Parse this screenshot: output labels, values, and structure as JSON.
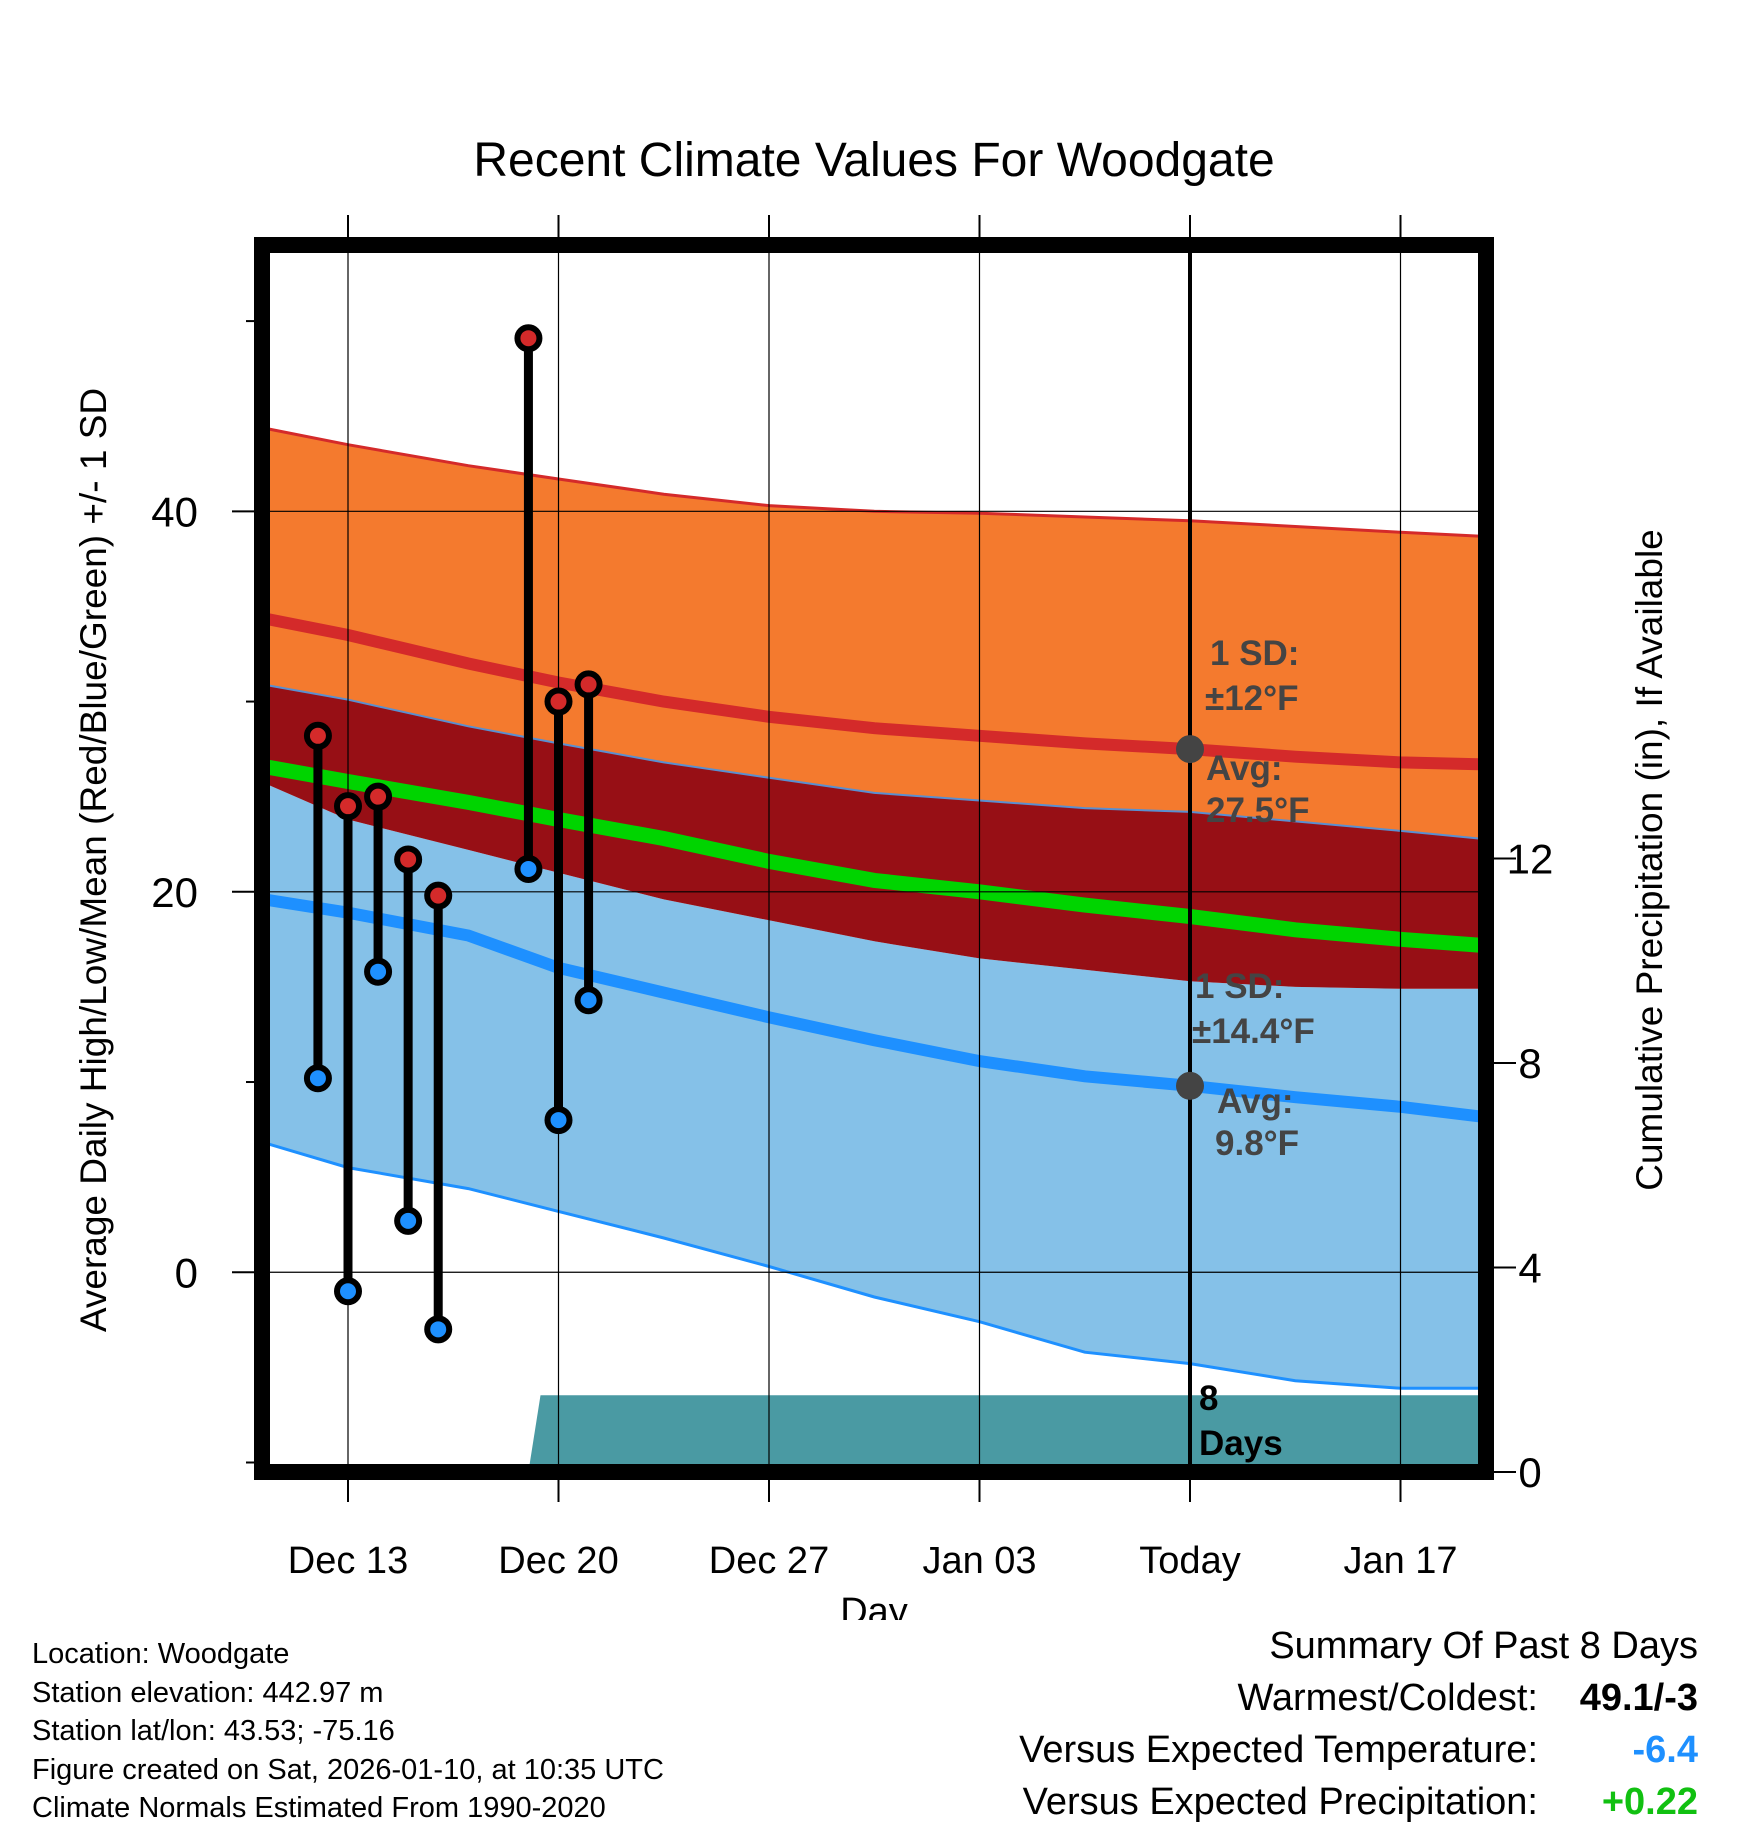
{
  "chart_data": {
    "type": "line",
    "title": "Recent Climate Values For Woodgate",
    "xlabel": "Day",
    "ylabel": "Average Daily High/Low/Mean (Red/Blue/Green) +/- 1 SD",
    "y2label": "Cumulative Precipitation (in), If Available",
    "x_day_range": [
      -21,
      10
    ],
    "ylim": [
      -10.5,
      54
    ],
    "y_ticks": [
      0,
      20,
      40
    ],
    "y_minor_ticks": [
      -10,
      10,
      30,
      50
    ],
    "y2lim": [
      0,
      24
    ],
    "y2_ticks": [
      0,
      4,
      8,
      12
    ],
    "x_ticks": [
      {
        "label": "Dec 13",
        "day": -28
      },
      {
        "label": "Dec 20",
        "day": -21
      },
      {
        "label": "Dec 27",
        "day": -14
      },
      {
        "label": "Jan 03",
        "day": -7
      },
      {
        "label": "Today",
        "day": 0
      },
      {
        "label": "Jan 17",
        "day": 7
      }
    ],
    "normal_days": [
      -31.2,
      -28,
      -24,
      -21,
      -17.5,
      -14,
      -10.5,
      -7,
      -3.5,
      0,
      3.5,
      7,
      9.6
    ],
    "normal_high": [
      34.5,
      33.5,
      32.0,
      31.0,
      30.0,
      29.2,
      28.6,
      28.2,
      27.8,
      27.5,
      27.1,
      26.8,
      26.7
    ],
    "normal_high_plus_sd": [
      44.5,
      43.5,
      42.4,
      41.7,
      40.9,
      40.3,
      40.0,
      39.9,
      39.7,
      39.5,
      39.2,
      38.9,
      38.7
    ],
    "normal_high_minus_sd": [
      31.0,
      30.1,
      28.7,
      27.8,
      26.8,
      26.0,
      25.2,
      24.8,
      24.4,
      24.2,
      23.7,
      23.2,
      22.8
    ],
    "normal_mean": [
      26.7,
      25.8,
      24.7,
      23.8,
      22.8,
      21.6,
      20.6,
      20.0,
      19.3,
      18.7,
      18.0,
      17.5,
      17.2
    ],
    "normal_mean_plus_sd": [
      26.0,
      23.8,
      22.2,
      21.0,
      19.6,
      18.5,
      17.4,
      16.5,
      15.9,
      15.3,
      15.0,
      14.9,
      14.9
    ],
    "normal_low": [
      19.7,
      18.9,
      17.7,
      16.0,
      14.7,
      13.4,
      12.2,
      11.1,
      10.3,
      9.8,
      9.2,
      8.7,
      8.2
    ],
    "normal_low_minus_sd": [
      7.0,
      5.5,
      4.4,
      3.2,
      1.8,
      0.3,
      -1.3,
      -2.6,
      -4.2,
      -4.8,
      -5.7,
      -6.1,
      -6.1
    ],
    "observed": [
      {
        "day": -29,
        "high": 28.2,
        "low": 10.2
      },
      {
        "day": -28,
        "high": 24.5,
        "low": -1.0
      },
      {
        "day": -27,
        "high": 25.0,
        "low": 15.8
      },
      {
        "day": -26,
        "high": 21.7,
        "low": 2.7
      },
      {
        "day": -25,
        "high": 19.8,
        "low": -3.0
      },
      {
        "day": -22,
        "high": 49.1,
        "low": 21.2
      },
      {
        "day": -21,
        "high": 30.0,
        "low": 8.0
      },
      {
        "day": -20,
        "high": 30.9,
        "low": 14.3
      }
    ],
    "precip_area": {
      "days": [
        -22,
        -21.6,
        9.6
      ],
      "cumulative_in": [
        0,
        1.5,
        1.5
      ]
    },
    "annotations": {
      "high_sd": "1 SD:",
      "high_sd_val": "±12°F",
      "high_avg": "Avg:",
      "high_avg_val": "27.5°F",
      "low_sd": "1 SD:",
      "low_sd_val": "±14.4°F",
      "low_avg": "Avg:",
      "low_avg_val": "9.8°F",
      "days_num": "8",
      "days_label": "Days"
    },
    "colors": {
      "high_band": "#f47a2e",
      "high_line": "#d42a2a",
      "mean_band": "#970f15",
      "mean_line": "#00d400",
      "low_band": "#85c1e8",
      "low_line": "#1e90ff",
      "precip": "#4a9aa3",
      "annotation": "#444444"
    }
  },
  "footer": {
    "location": "Location: Woodgate",
    "elevation": "Station elevation: 442.97 m",
    "latlon": "Station lat/lon: 43.53; -75.16",
    "created": "Figure created on Sat, 2026-01-10, at 10:35 UTC",
    "normals": "Climate Normals Estimated From 1990-2020"
  },
  "summary": {
    "title": "Summary Of Past 8 Days",
    "warm_cold_label": "Warmest/Coldest:",
    "warm_cold_value": "49.1/-3",
    "temp_label": "Versus Expected Temperature:",
    "temp_value": "-6.4",
    "temp_color": "#1e90ff",
    "precip_label": "Versus Expected Precipitation:",
    "precip_value": "+0.22",
    "precip_color": "#11c011"
  }
}
